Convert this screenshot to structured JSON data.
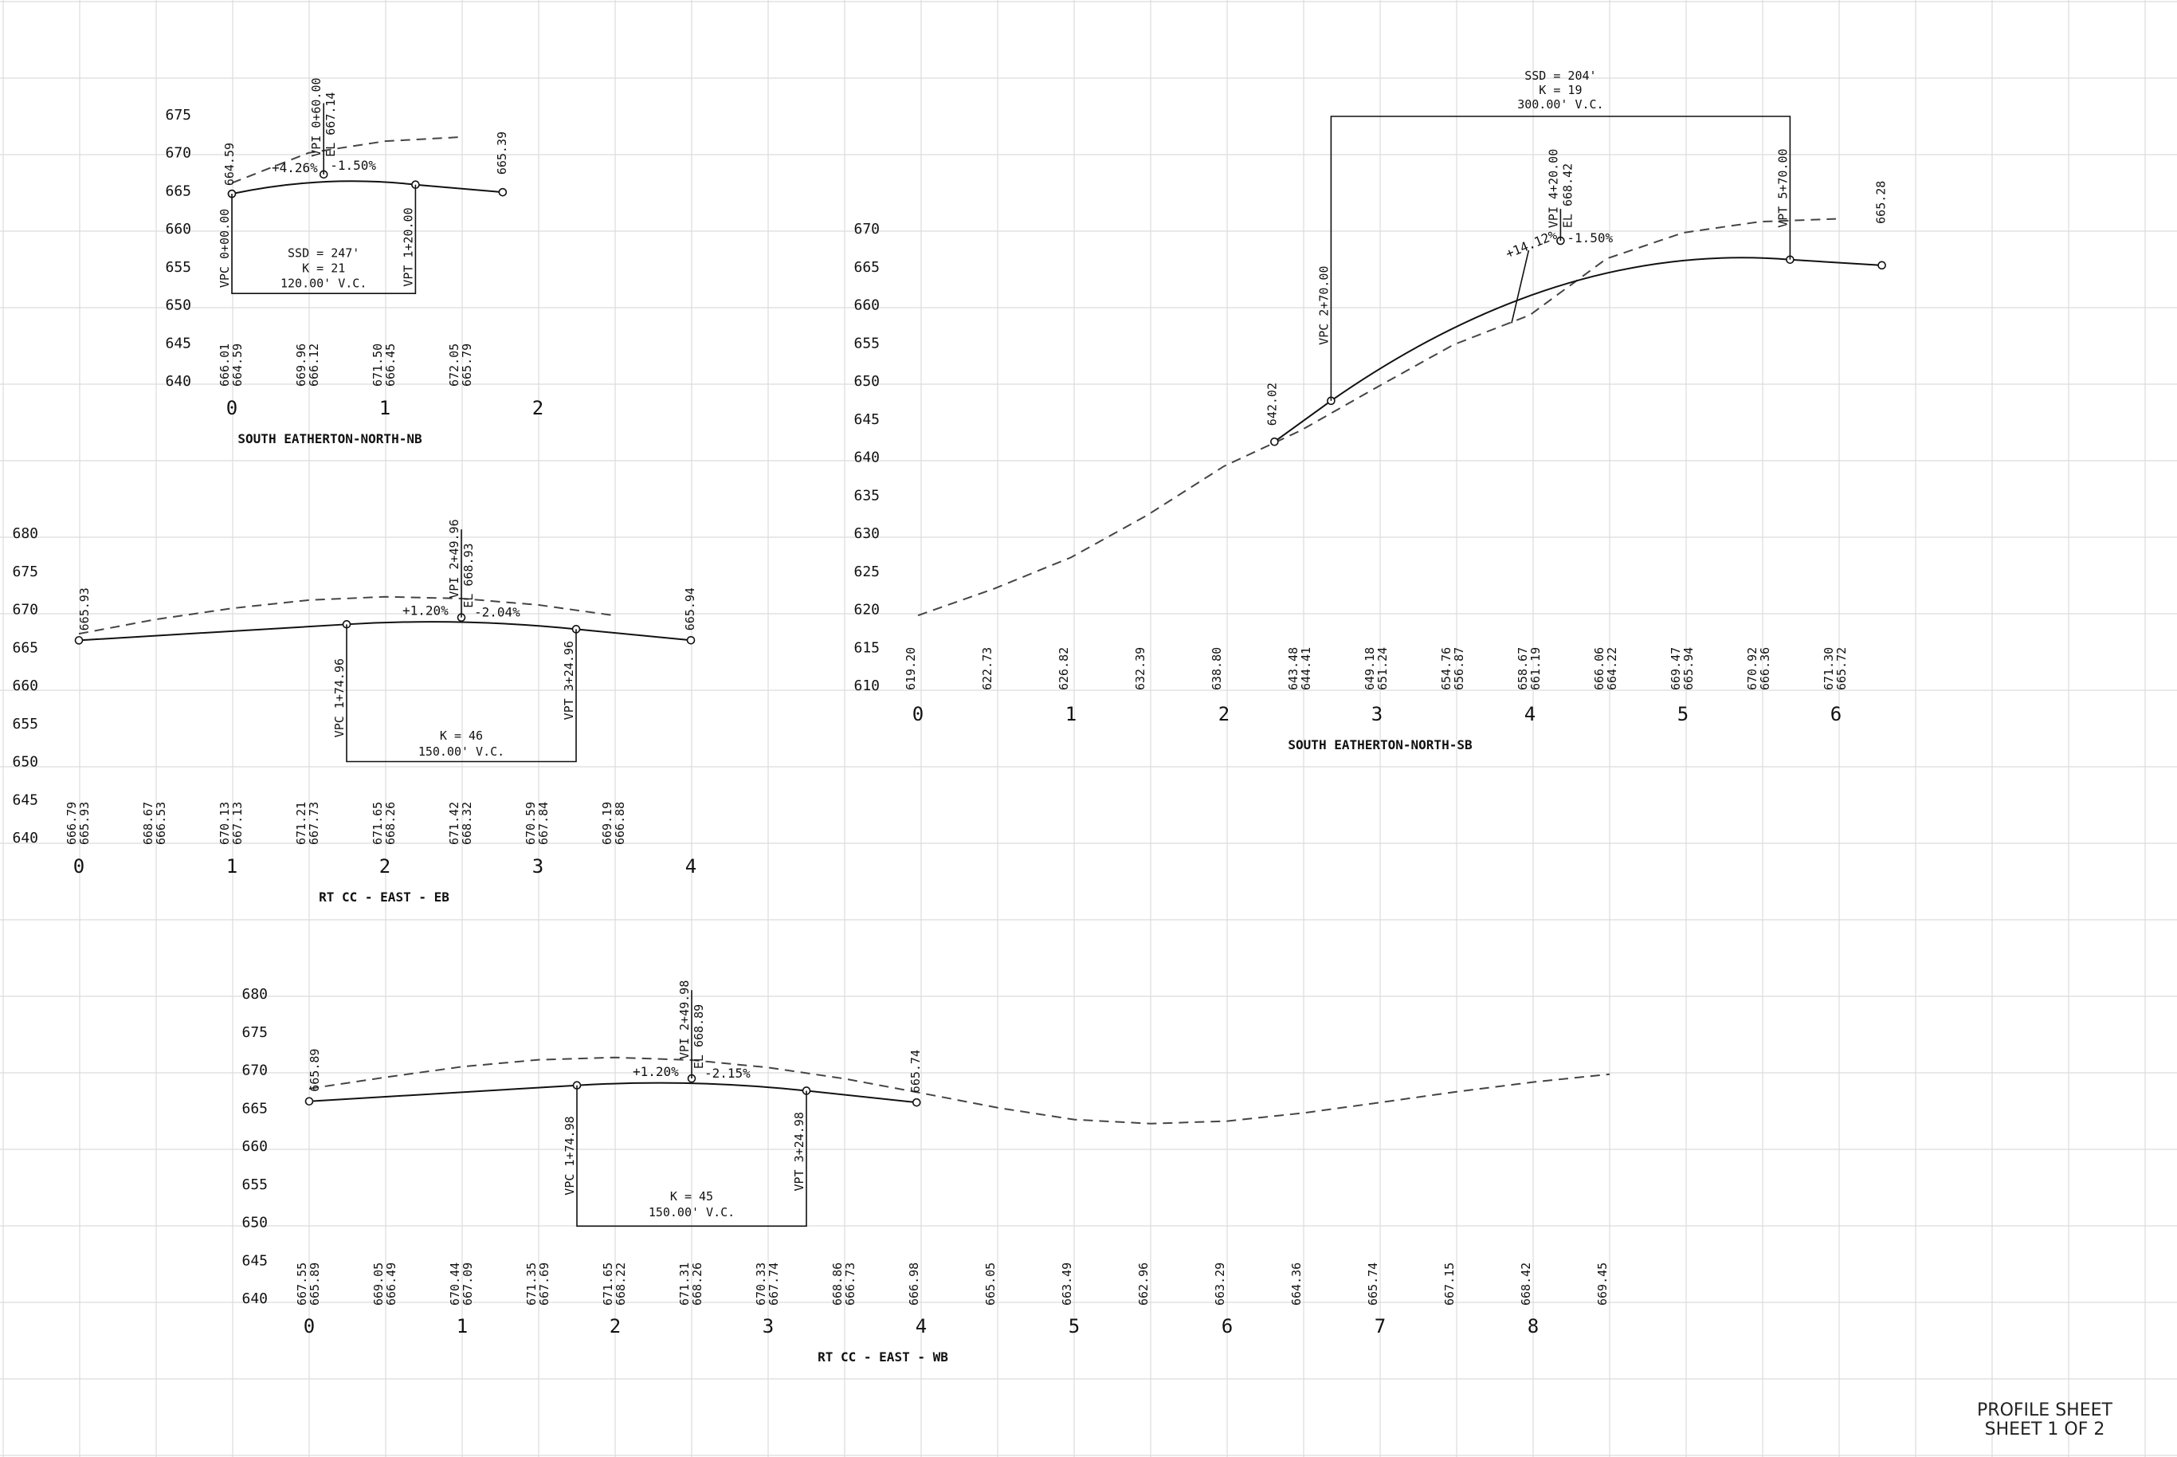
{
  "sheet": {
    "title_line1": "PROFILE SHEET",
    "title_line2": "SHEET 1 OF 2"
  },
  "profiles": [
    {
      "id": "nb",
      "title": "SOUTH EATHERTON-NORTH-NB",
      "y_ticks": [
        "640",
        "645",
        "650",
        "655",
        "660",
        "665",
        "670",
        "675"
      ],
      "x_ticks": [
        "0",
        "1",
        "2"
      ],
      "bottom_values": [
        {
          "x": 0,
          "existing": "666.01",
          "proposed": "664.59"
        },
        {
          "x": 0.5,
          "existing": "669.96",
          "proposed": "666.12"
        },
        {
          "x": 1.0,
          "existing": "671.50",
          "proposed": "666.45"
        },
        {
          "x": 1.5,
          "existing": "672.05",
          "proposed": "665.79"
        }
      ],
      "curve_labels": {
        "vpc": "VPC 0+00.00",
        "vpi": "VPI 0+60.00",
        "vpi_el": "EL 667.14",
        "vpt": "VPT 1+20.00",
        "grade_in": "+4.26%",
        "grade_out": "-1.50%",
        "start_el": "664.59",
        "end_el": "665.39",
        "ssd": "SSD = 247'",
        "k": "K = 21",
        "vc": "120.00'  V.C."
      }
    },
    {
      "id": "sb",
      "title": "SOUTH EATHERTON-NORTH-SB",
      "y_ticks": [
        "610",
        "615",
        "620",
        "625",
        "630",
        "635",
        "640",
        "645",
        "650",
        "655",
        "660",
        "665",
        "670"
      ],
      "x_ticks": [
        "0",
        "1",
        "2",
        "3",
        "4",
        "5",
        "6"
      ],
      "bottom_values": [
        {
          "x": 0,
          "existing": "619.20"
        },
        {
          "x": 0.5,
          "existing": "622.73"
        },
        {
          "x": 1.0,
          "existing": "626.82"
        },
        {
          "x": 1.5,
          "existing": "632.39"
        },
        {
          "x": 2.0,
          "existing": "638.80"
        },
        {
          "x": 2.5,
          "existing": "643.48",
          "proposed": "644.41"
        },
        {
          "x": 3.0,
          "existing": "649.18",
          "proposed": "651.24"
        },
        {
          "x": 3.5,
          "existing": "654.76",
          "proposed": "656.87"
        },
        {
          "x": 4.0,
          "existing": "658.67",
          "proposed": "661.19"
        },
        {
          "x": 4.5,
          "existing": "666.06",
          "proposed": "664.22"
        },
        {
          "x": 5.0,
          "existing": "669.47",
          "proposed": "665.94"
        },
        {
          "x": 5.5,
          "existing": "670.92",
          "proposed": "666.36"
        },
        {
          "x": 6.0,
          "existing": "671.30",
          "proposed": "665.72"
        }
      ],
      "curve_labels": {
        "start_el": "642.02",
        "vpc": "VPC 2+70.00",
        "vpi": "VPI 4+20.00",
        "vpi_el": "EL 668.42",
        "vpt": "VPT 5+70.00",
        "grade_in": "+14.12%",
        "grade_out": "-1.50%",
        "end_el": "665.28",
        "ssd": "SSD = 204'",
        "k": "K = 19",
        "vc": "300.00'  V.C."
      }
    },
    {
      "id": "eb",
      "title": "RT CC - EAST - EB",
      "y_ticks": [
        "640",
        "645",
        "650",
        "655",
        "660",
        "665",
        "670",
        "675",
        "680"
      ],
      "x_ticks": [
        "0",
        "1",
        "2",
        "3",
        "4"
      ],
      "bottom_values": [
        {
          "x": 0,
          "existing": "666.79",
          "proposed": "665.93"
        },
        {
          "x": 0.5,
          "existing": "668.67",
          "proposed": "666.53"
        },
        {
          "x": 1.0,
          "existing": "670.13",
          "proposed": "667.13"
        },
        {
          "x": 1.5,
          "existing": "671.21",
          "proposed": "667.73"
        },
        {
          "x": 2.0,
          "existing": "671.65",
          "proposed": "668.26"
        },
        {
          "x": 2.5,
          "existing": "671.42",
          "proposed": "668.32"
        },
        {
          "x": 3.0,
          "existing": "670.59",
          "proposed": "667.84"
        },
        {
          "x": 3.5,
          "existing": "669.19",
          "proposed": "666.88"
        }
      ],
      "curve_labels": {
        "start_el": "665.93",
        "vpc": "VPC 1+74.96",
        "vpi": "VPI 2+49.96",
        "vpi_el": "EL 668.93",
        "vpt": "VPT 3+24.96",
        "grade_in": "+1.20%",
        "grade_out": "-2.04%",
        "end_el": "665.94",
        "k": "K = 46",
        "vc": "150.00'  V.C."
      }
    },
    {
      "id": "wb",
      "title": "RT CC - EAST - WB",
      "y_ticks": [
        "640",
        "645",
        "650",
        "655",
        "660",
        "665",
        "670",
        "675",
        "680"
      ],
      "x_ticks": [
        "0",
        "1",
        "2",
        "3",
        "4",
        "5",
        "6",
        "7",
        "8"
      ],
      "bottom_values": [
        {
          "x": 0,
          "existing": "667.55",
          "proposed": "665.89"
        },
        {
          "x": 0.5,
          "existing": "669.05",
          "proposed": "666.49"
        },
        {
          "x": 1.0,
          "existing": "670.44",
          "proposed": "667.09"
        },
        {
          "x": 1.5,
          "existing": "671.35",
          "proposed": "667.69"
        },
        {
          "x": 2.0,
          "existing": "671.65",
          "proposed": "668.22"
        },
        {
          "x": 2.5,
          "existing": "671.31",
          "proposed": "668.26"
        },
        {
          "x": 3.0,
          "existing": "670.33",
          "proposed": "667.74"
        },
        {
          "x": 3.5,
          "existing": "668.86",
          "proposed": "666.73"
        },
        {
          "x": 4.0,
          "existing": "666.98"
        },
        {
          "x": 4.5,
          "existing": "665.05"
        },
        {
          "x": 5.0,
          "existing": "663.49"
        },
        {
          "x": 5.5,
          "existing": "662.96"
        },
        {
          "x": 6.0,
          "existing": "663.29"
        },
        {
          "x": 6.5,
          "existing": "664.36"
        },
        {
          "x": 7.0,
          "existing": "665.74"
        },
        {
          "x": 7.5,
          "existing": "667.15"
        },
        {
          "x": 8.0,
          "existing": "668.42"
        },
        {
          "x": 8.5,
          "existing": "669.45"
        }
      ],
      "curve_labels": {
        "start_el": "665.89",
        "vpc": "VPC 1+74.98",
        "vpi": "VPI 2+49.98",
        "vpi_el": "EL 668.89",
        "vpt": "VPT 3+24.98",
        "grade_in": "+1.20%",
        "grade_out": "-2.15%",
        "end_el": "665.74",
        "k": "K = 45",
        "vc": "150.00'  V.C."
      }
    }
  ]
}
